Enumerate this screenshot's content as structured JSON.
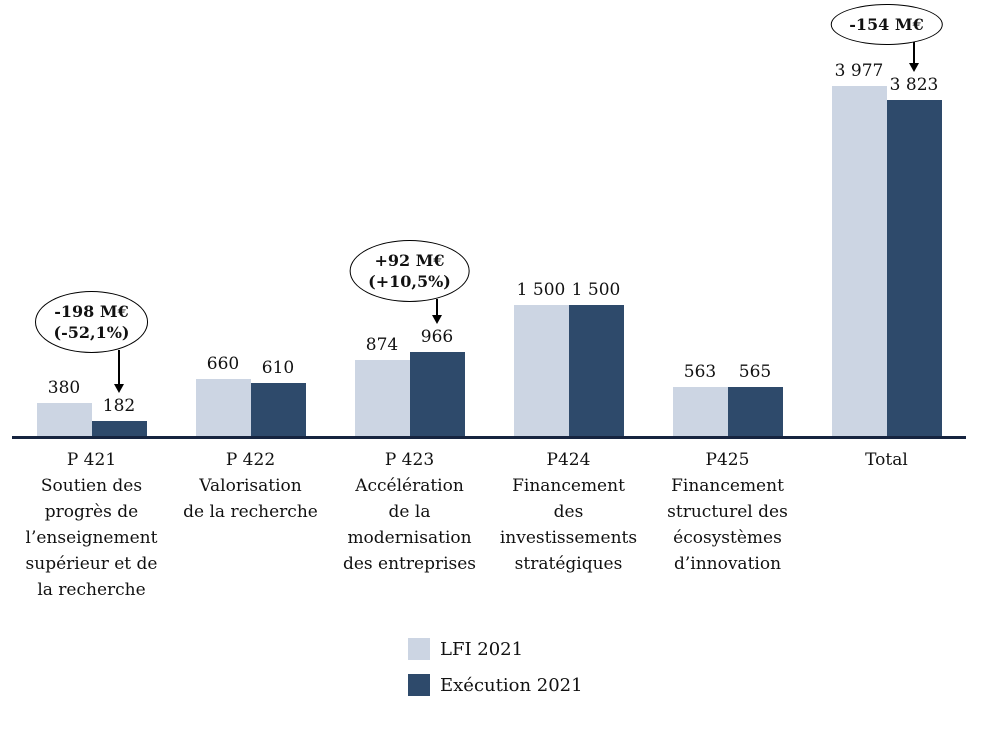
{
  "chart_data": {
    "type": "bar",
    "title": "",
    "grid": false,
    "legend_position": "bottom",
    "ylim": [
      0,
      4000
    ],
    "categories": [
      {
        "lines": [
          "P 421",
          "Soutien des",
          "progrès de",
          "l’enseignement",
          "supérieur et de",
          "la recherche"
        ]
      },
      {
        "lines": [
          "P 422",
          "Valorisation",
          "de la recherche"
        ]
      },
      {
        "lines": [
          "P 423",
          "Accélération",
          "de la",
          "modernisation",
          "des entreprises"
        ]
      },
      {
        "lines": [
          "P424",
          "Financement",
          "des",
          "investissements",
          "stratégiques"
        ]
      },
      {
        "lines": [
          "P425",
          "Financement",
          "structurel des",
          "écosystèmes",
          "d’innovation"
        ]
      },
      {
        "lines": [
          "Total"
        ]
      }
    ],
    "series": [
      {
        "name": "LFI 2021",
        "color": "#ccd5e3",
        "values": [
          380,
          660,
          874,
          1500,
          563,
          3977
        ],
        "labels": [
          "380",
          "660",
          "874",
          "1 500",
          "563",
          "3 977"
        ]
      },
      {
        "name": "Exécution 2021",
        "color": "#2e4a6b",
        "values": [
          182,
          610,
          966,
          1500,
          565,
          3823
        ],
        "labels": [
          "182",
          "610",
          "966",
          "1 500",
          "565",
          "3 823"
        ]
      }
    ],
    "annotations": [
      {
        "category_index": 0,
        "lines": [
          "-198 M€",
          "(-52,1%)"
        ]
      },
      {
        "category_index": 2,
        "lines": [
          "+92 M€",
          "(+10,5%)"
        ]
      },
      {
        "category_index": 5,
        "lines": [
          "-154 M€"
        ]
      }
    ]
  },
  "colors": {
    "axis": "#16243f",
    "text": "#111111",
    "annotation_border": "#000000",
    "background": "#ffffff"
  }
}
